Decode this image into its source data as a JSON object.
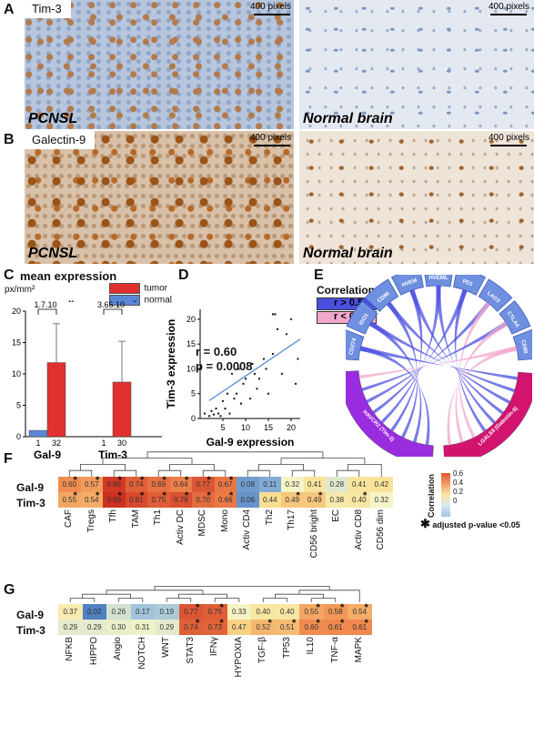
{
  "panels": {
    "A": {
      "letter": "A",
      "stain_label": "Tim-3",
      "scale_left": "400 pixels",
      "scale_right": "400 pixels",
      "tissue_left": "PCNSL",
      "tissue_right": "Normal brain"
    },
    "B": {
      "letter": "B",
      "stain_label": "Galectin-9",
      "scale_left": "400 pixels",
      "scale_right": "400 pixels",
      "tissue_left": "PCNSL",
      "tissue_right": "Normal brain"
    },
    "C": {
      "letter": "C",
      "title": "mean expression",
      "unit": "px/mm²",
      "legend": [
        {
          "label": "tumor",
          "color": "#e03030"
        },
        {
          "label": "normal",
          "color": "#5b87d8"
        }
      ]
    },
    "D": {
      "letter": "D",
      "r_text": "r = 0.60",
      "p_text": "p = 0.0008"
    },
    "E": {
      "letter": "E",
      "legend_title": "Correlation",
      "legend": [
        {
          "label": "r > 0.5",
          "color": "#4b4fe0"
        },
        {
          "label": "r < 0.5",
          "color": "#f2a8cc"
        }
      ]
    },
    "F": {
      "letter": "F"
    },
    "G": {
      "letter": "G"
    }
  },
  "chart_data": [
    {
      "type": "bar",
      "panel": "C",
      "title": "mean expression",
      "ylabel": "px/mm²",
      "ylim": [
        0,
        20
      ],
      "yticks": [
        0,
        5,
        10,
        15,
        20
      ],
      "groups": [
        {
          "name": "Gal-9",
          "normal": {
            "value": 1,
            "n": "1"
          },
          "tumor": {
            "value": 11.8,
            "error_top": 18,
            "n": "32"
          },
          "pvalue_base": "1.7.10",
          "pvalue_exp": "-11"
        },
        {
          "name": "Tim-3",
          "normal": {
            "value": 0,
            "n": "1"
          },
          "tumor": {
            "value": 8.7,
            "error_top": 15.2,
            "n": "30"
          },
          "pvalue_base": "3.65.10",
          "pvalue_exp": "-8"
        }
      ]
    },
    {
      "type": "scatter",
      "panel": "D",
      "xlabel": "Gal-9 expression",
      "ylabel": "Tim-3 expression",
      "xlim": [
        0,
        22
      ],
      "ylim": [
        0,
        22
      ],
      "xticks": [
        5,
        10,
        15,
        20
      ],
      "yticks": [
        0,
        5,
        10,
        15,
        20
      ],
      "points": [
        [
          1,
          1
        ],
        [
          2,
          0.5
        ],
        [
          2.5,
          1.5
        ],
        [
          3,
          0.8
        ],
        [
          3.5,
          2
        ],
        [
          4,
          1
        ],
        [
          4.5,
          0.5
        ],
        [
          5,
          3.5
        ],
        [
          5.5,
          2
        ],
        [
          6,
          5
        ],
        [
          6.5,
          1
        ],
        [
          7,
          9
        ],
        [
          7.5,
          4
        ],
        [
          8,
          5
        ],
        [
          8.5,
          10
        ],
        [
          9,
          3
        ],
        [
          9.5,
          7
        ],
        [
          10,
          8
        ],
        [
          11,
          4
        ],
        [
          11.5,
          11
        ],
        [
          12,
          9
        ],
        [
          12.5,
          6
        ],
        [
          13,
          8
        ],
        [
          14,
          12
        ],
        [
          14.5,
          10
        ],
        [
          15,
          5
        ],
        [
          16,
          13
        ],
        [
          16.5,
          21
        ],
        [
          17,
          18
        ],
        [
          18,
          9
        ],
        [
          19,
          17
        ],
        [
          20,
          20
        ],
        [
          21,
          7
        ],
        [
          21.5,
          12
        ],
        [
          16,
          21
        ]
      ],
      "fit": {
        "x0": 2,
        "y0": 3.6,
        "x1": 22,
        "y1": 16
      }
    },
    {
      "type": "chord",
      "panel": "E",
      "top_nodes": [
        "CD274",
        "IDO1",
        "CD86",
        "HVEM",
        "HVEML",
        "PD1",
        "LAG3",
        "CTLA4",
        "CD80"
      ],
      "bottom_nodes": [
        "HAVCR2 (Tim-3)",
        "LGALS9 (Galectin-9)"
      ]
    },
    {
      "type": "heatmap",
      "panel": "F",
      "rows": [
        "Gal-9",
        "Tim-3"
      ],
      "columns": [
        "CAF",
        "Tregs",
        "Tfh",
        "TAM",
        "Th1",
        "Activ DC",
        "MDSC",
        "Mono",
        "Activ CD4",
        "Th2",
        "Th17",
        "CD56 bright",
        "EC",
        "Activ CD8",
        "CD56 dim"
      ],
      "values": [
        [
          0.6,
          0.57,
          0.86,
          0.74,
          0.69,
          0.64,
          0.77,
          0.67,
          0.08,
          0.11,
          0.32,
          0.41,
          0.28,
          0.41,
          0.42
        ],
        [
          0.55,
          0.54,
          0.89,
          0.81,
          0.75,
          0.79,
          0.7,
          0.66,
          0.06,
          0.44,
          0.49,
          0.49,
          0.38,
          0.4,
          0.32
        ]
      ],
      "stars": [
        [
          1,
          1,
          1,
          1,
          1,
          1,
          1,
          1,
          0,
          0,
          0,
          0,
          0,
          0,
          0
        ],
        [
          1,
          1,
          1,
          1,
          1,
          1,
          1,
          1,
          0,
          0,
          1,
          1,
          0,
          1,
          0
        ]
      ],
      "colorbar_title": "Correlation",
      "colorbar_ticks": [
        "0.6",
        "0.4",
        "0.2",
        "0"
      ],
      "star_note": "adjusted p-value <0.05"
    },
    {
      "type": "heatmap",
      "panel": "G",
      "rows": [
        "Gal-9",
        "Tim-3"
      ],
      "columns": [
        "NFKB",
        "HIPPO",
        "Angio",
        "NOTCH",
        "WNT",
        "STAT3",
        "IFNγ",
        "HYPOXIA",
        "TGF-β",
        "TP53",
        "IL10",
        "TNF-α",
        "MAPK"
      ],
      "values": [
        [
          0.37,
          0.02,
          0.26,
          0.17,
          0.19,
          0.77,
          0.75,
          0.33,
          0.4,
          0.4,
          0.55,
          0.58,
          0.54
        ],
        [
          0.29,
          0.29,
          0.3,
          0.31,
          0.29,
          0.74,
          0.73,
          0.47,
          0.52,
          0.51,
          0.6,
          0.61,
          0.61
        ]
      ],
      "stars": [
        [
          0,
          0,
          0,
          0,
          0,
          1,
          1,
          0,
          0,
          0,
          1,
          1,
          1
        ],
        [
          0,
          0,
          0,
          0,
          0,
          1,
          1,
          0,
          1,
          1,
          1,
          1,
          1
        ]
      ]
    }
  ]
}
